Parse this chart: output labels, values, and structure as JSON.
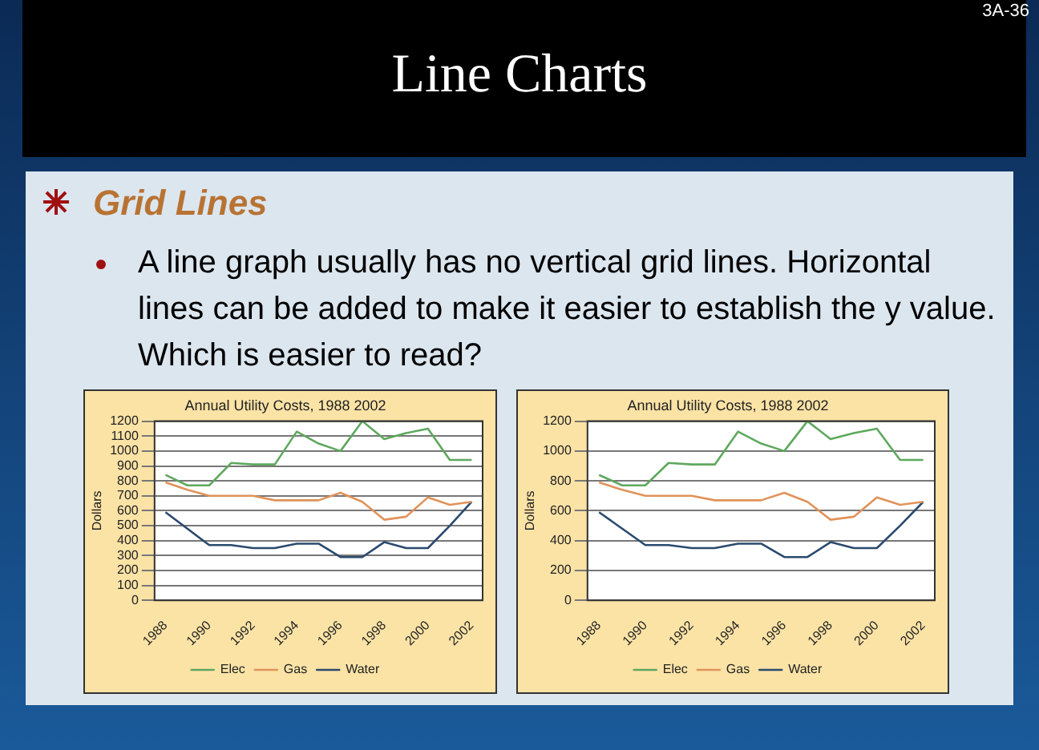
{
  "chart_data": [
    {
      "type": "line",
      "title": "Annual Utility Costs, 1988 2002",
      "ylabel": "Dollars",
      "annotations": [
        "3A-36",
        "Line Charts",
        "Grid Lines",
        "A line graph usually has no vertical grid lines. Horizontal lines can be added to make it easier to establish the y value.  Which is easier to read?"
      ],
      "categories": [
        "1988",
        null,
        "1990",
        null,
        "1992",
        null,
        "1994",
        null,
        "1996",
        null,
        "1998",
        null,
        "2000",
        null,
        "2002"
      ],
      "series": [
        {
          "name": "Elec",
          "color": "#5fa85f",
          "values": [
            840,
            770,
            770,
            920,
            910,
            910,
            1130,
            1050,
            1000,
            1200,
            1080,
            1120,
            1150,
            940,
            940
          ]
        },
        {
          "name": "Gas",
          "color": "#e0935a",
          "values": [
            790,
            740,
            700,
            700,
            700,
            670,
            670,
            670,
            720,
            660,
            540,
            560,
            690,
            640,
            660
          ]
        },
        {
          "name": "Water",
          "color": "#2a4a6e",
          "values": [
            590,
            480,
            370,
            370,
            350,
            350,
            380,
            380,
            290,
            290,
            390,
            350,
            350,
            500,
            660
          ]
        }
      ],
      "ylim": [
        0,
        1200
      ],
      "yticks": [
        0,
        100,
        200,
        300,
        400,
        500,
        600,
        700,
        800,
        900,
        1000,
        1100,
        1200
      ],
      "grid": "y",
      "legend": "bottom",
      "marker": "none"
    },
    {
      "type": "line",
      "title": "Annual Utility Costs, 1988 2002",
      "ylabel": "Dollars",
      "categories": [
        "1988",
        null,
        "1990",
        null,
        "1992",
        null,
        "1994",
        null,
        "1996",
        null,
        "1998",
        null,
        "2000",
        null,
        "2002"
      ],
      "series": [
        {
          "name": "Elec",
          "color": "#5fa85f",
          "values": [
            840,
            770,
            770,
            920,
            910,
            910,
            1130,
            1050,
            1000,
            1200,
            1080,
            1120,
            1150,
            940,
            940
          ]
        },
        {
          "name": "Gas",
          "color": "#e0935a",
          "values": [
            790,
            740,
            700,
            700,
            700,
            670,
            670,
            670,
            720,
            660,
            540,
            560,
            690,
            640,
            660
          ]
        },
        {
          "name": "Water",
          "color": "#2a4a6e",
          "values": [
            590,
            480,
            370,
            370,
            350,
            350,
            380,
            380,
            290,
            290,
            390,
            350,
            350,
            500,
            660
          ]
        }
      ],
      "ylim": [
        0,
        1200
      ],
      "yticks": [
        0,
        200,
        400,
        600,
        800,
        1000,
        1200
      ],
      "grid": "y",
      "legend": "bottom",
      "marker": "none"
    }
  ]
}
